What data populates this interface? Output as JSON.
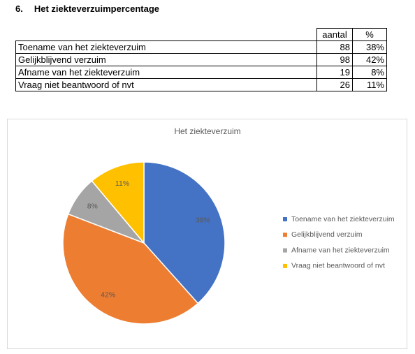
{
  "heading": {
    "number": "6.",
    "title": "Het ziekteverzuimpercentage"
  },
  "table": {
    "header": [
      "aantal",
      "%"
    ],
    "rows": [
      [
        "Toename van het ziekteverzuim",
        "88",
        "38%"
      ],
      [
        "Gelijkblijvend verzuim",
        "98",
        "42%"
      ],
      [
        "Afname van het ziekteverzuim",
        "19",
        "8%"
      ],
      [
        "Vraag niet beantwoord of nvt",
        "26",
        "11%"
      ]
    ]
  },
  "chart_data": {
    "type": "pie",
    "title": "Het ziekteverzuim",
    "categories": [
      "Toename van het ziekteverzuim",
      "Gelijkblijvend verzuim",
      "Afname van het ziekteverzuim",
      "Vraag niet beantwoord of nvt"
    ],
    "values": [
      38,
      42,
      8,
      11
    ],
    "value_labels": [
      "38%",
      "42%",
      "8%",
      "11%"
    ],
    "colors": [
      "#4472c4",
      "#ed7d31",
      "#a5a5a5",
      "#ffc000"
    ],
    "legend": "right"
  }
}
